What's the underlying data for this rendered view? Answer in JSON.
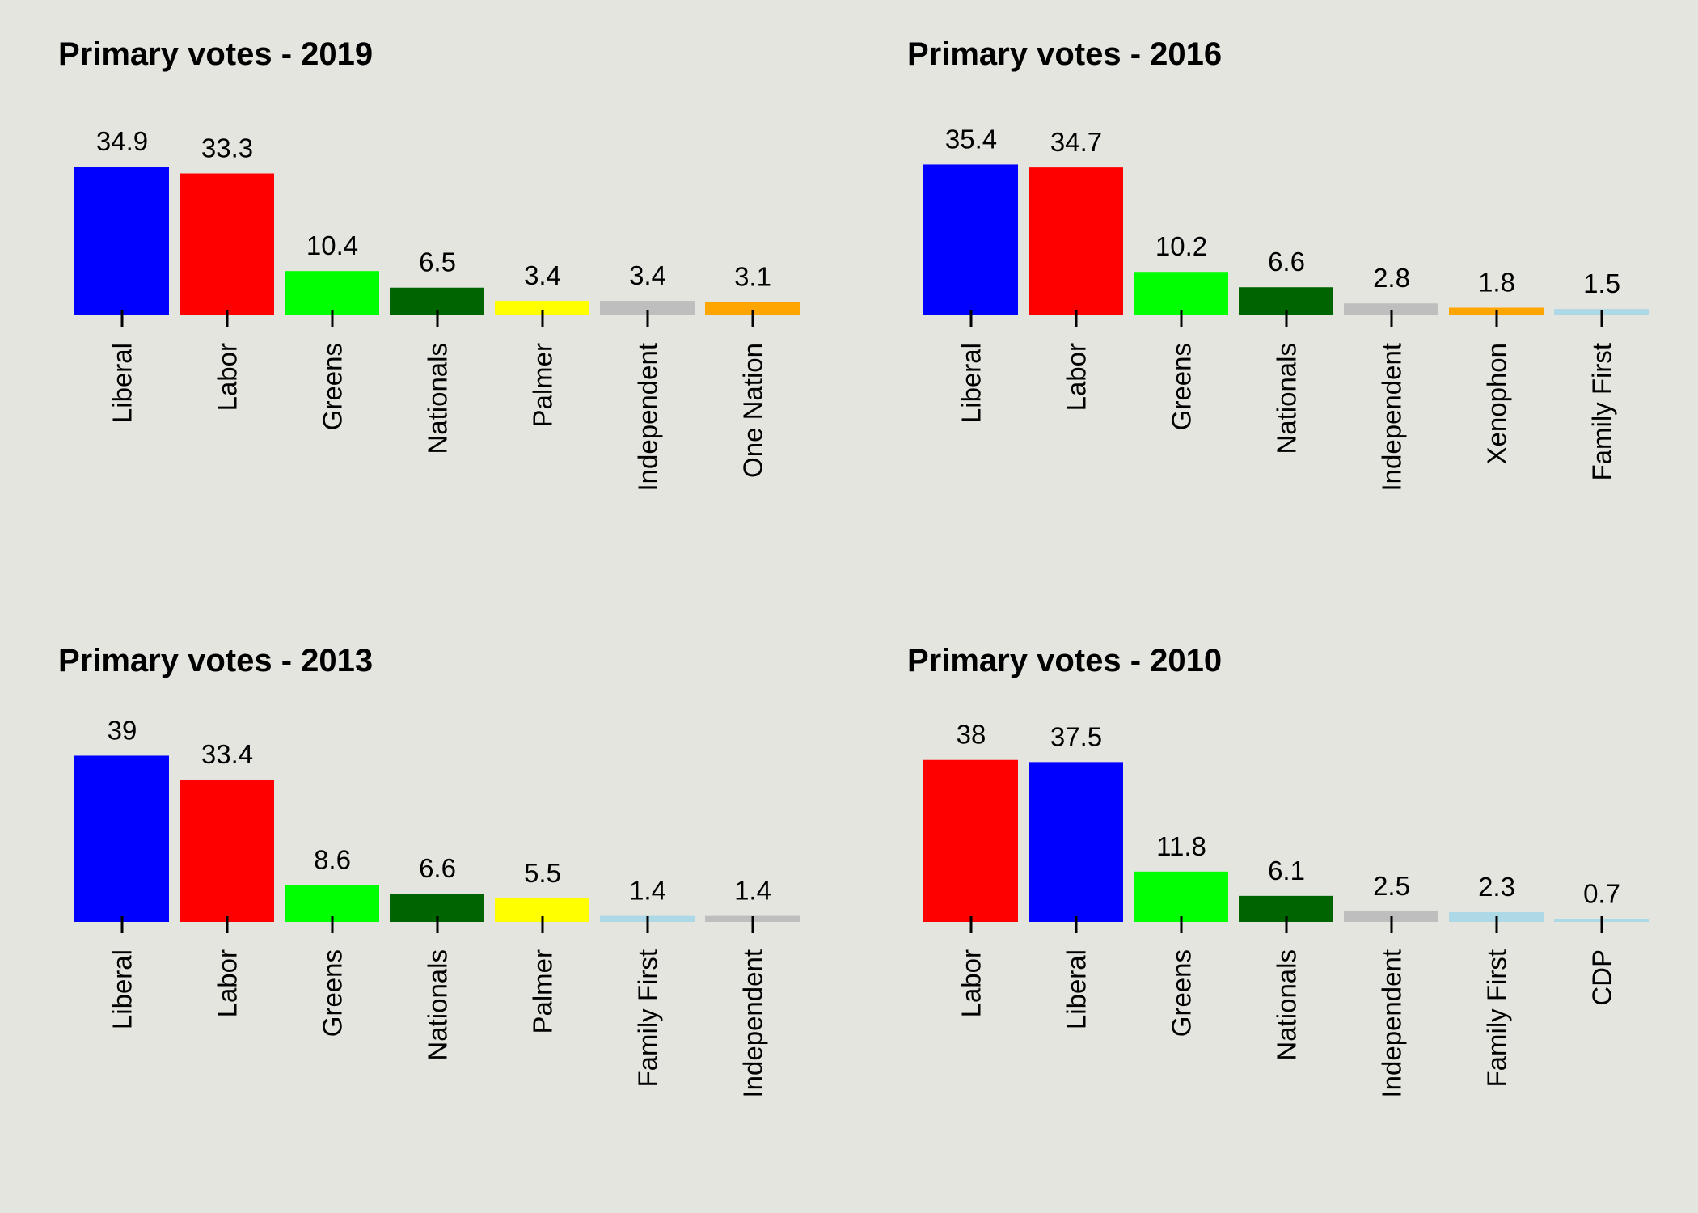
{
  "chart_data": [
    {
      "type": "bar",
      "title": "Primary votes - 2019",
      "categories": [
        "Liberal",
        "Labor",
        "Greens",
        "Nationals",
        "Palmer",
        "Independent",
        "One Nation"
      ],
      "values": [
        34.9,
        33.3,
        10.4,
        6.5,
        3.4,
        3.4,
        3.1
      ],
      "colors": [
        "#0000ff",
        "#ff0000",
        "#00ff00",
        "#006400",
        "#ffff00",
        "#bebebe",
        "#ffa500"
      ],
      "xlabel": "",
      "ylabel": "",
      "ylim": [
        0,
        40
      ],
      "grid": false,
      "axes_visible": false
    },
    {
      "type": "bar",
      "title": "Primary votes - 2016",
      "categories": [
        "Liberal",
        "Labor",
        "Greens",
        "Nationals",
        "Independent",
        "Xenophon",
        "Family First"
      ],
      "values": [
        35.4,
        34.7,
        10.2,
        6.6,
        2.8,
        1.8,
        1.5
      ],
      "colors": [
        "#0000ff",
        "#ff0000",
        "#00ff00",
        "#006400",
        "#bebebe",
        "#ffa500",
        "#add8e6"
      ],
      "xlabel": "",
      "ylabel": "",
      "ylim": [
        0,
        40
      ],
      "grid": false,
      "axes_visible": false
    },
    {
      "type": "bar",
      "title": "Primary votes - 2013",
      "categories": [
        "Liberal",
        "Labor",
        "Greens",
        "Nationals",
        "Palmer",
        "Family First",
        "Independent"
      ],
      "values": [
        39,
        33.4,
        8.6,
        6.6,
        5.5,
        1.4,
        1.4
      ],
      "colors": [
        "#0000ff",
        "#ff0000",
        "#00ff00",
        "#006400",
        "#ffff00",
        "#add8e6",
        "#bebebe"
      ],
      "xlabel": "",
      "ylabel": "",
      "ylim": [
        0,
        40
      ],
      "grid": false,
      "axes_visible": false
    },
    {
      "type": "bar",
      "title": "Primary votes - 2010",
      "categories": [
        "Labor",
        "Liberal",
        "Greens",
        "Nationals",
        "Independent",
        "Family First",
        "CDP"
      ],
      "values": [
        38,
        37.5,
        11.8,
        6.1,
        2.5,
        2.3,
        0.7
      ],
      "colors": [
        "#ff0000",
        "#0000ff",
        "#00ff00",
        "#006400",
        "#bebebe",
        "#add8e6",
        "#add8e6"
      ],
      "xlabel": "",
      "ylabel": "",
      "ylim": [
        0,
        40
      ],
      "grid": false,
      "axes_visible": false
    }
  ],
  "background_color": "#e5e5e0"
}
